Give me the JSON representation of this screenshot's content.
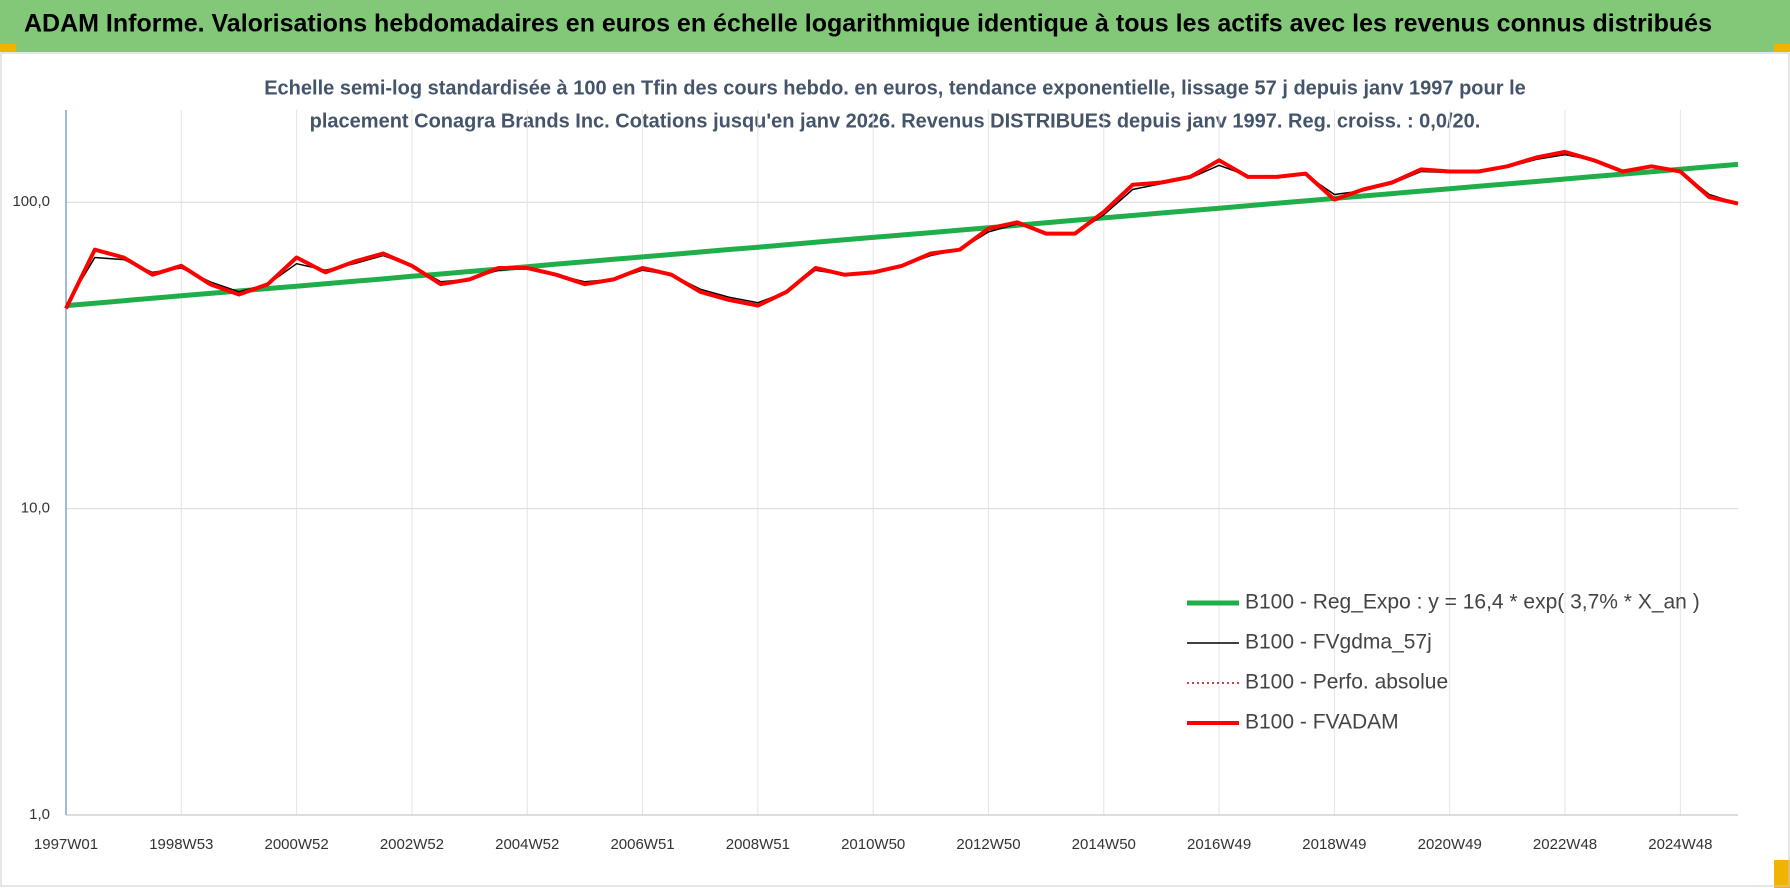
{
  "header": {
    "title": "ADAM Informe. Valorisations hebdomadaires en euros en échelle logarithmique identique à tous les actifs avec les revenus connus distribués"
  },
  "chart_data": {
    "type": "line",
    "title": [
      "Echelle semi-log standardisée à 100 en Tfin des cours hebdo. en euros, tendance exponentielle, lissage 57 j depuis janv 1997 pour le",
      "placement Conagra Brands Inc.  Cotations jusqu'en janv 2026. Revenus DISTRIBUES depuis janv 1997.  Reg. croiss. : 0,0/20."
    ],
    "categories": [
      "1997W01",
      null,
      null,
      null,
      "1998W53",
      null,
      null,
      null,
      "2000W52",
      null,
      null,
      null,
      "2002W52",
      null,
      null,
      null,
      "2004W52",
      null,
      null,
      null,
      "2006W51",
      null,
      null,
      null,
      "2008W51",
      null,
      null,
      null,
      "2010W50",
      null,
      null,
      null,
      "2012W50",
      null,
      null,
      null,
      "2014W50",
      null,
      null,
      null,
      "2016W49",
      null,
      null,
      null,
      "2018W49",
      null,
      null,
      null,
      "2020W49",
      null,
      null,
      null,
      "2022W48",
      null,
      null,
      null,
      "2024W48",
      null,
      null
    ],
    "series": [
      {
        "name": "B100 - Reg_Expo : y = 16,4 * exp( 3,7% *  X_an )",
        "color": "#1fae4a",
        "width": 5,
        "dash": null,
        "values": [
          46.0,
          46.8,
          47.7,
          48.6,
          49.5,
          50.4,
          51.3,
          52.3,
          53.2,
          54.2,
          55.2,
          56.2,
          57.3,
          58.3,
          59.4,
          60.5,
          61.6,
          62.8,
          63.9,
          65.1,
          66.3,
          67.5,
          68.8,
          70.1,
          71.3,
          72.7,
          74.0,
          75.4,
          76.8,
          78.2,
          79.6,
          81.1,
          82.6,
          84.1,
          85.7,
          87.3,
          88.9,
          90.5,
          92.2,
          93.9,
          95.6,
          97.4,
          99.2,
          101,
          102.9,
          104.8,
          106.7,
          108.7,
          110.7,
          112.7,
          114.8,
          116.9,
          119.1,
          121.3,
          123.5,
          125.8,
          128.1,
          130.5,
          132.9
        ]
      },
      {
        "name": "B100 - FVgdma_57j",
        "color": "#000000",
        "width": 1.5,
        "dash": null,
        "values": [
          46,
          66,
          65,
          59,
          61,
          55,
          51,
          54,
          63,
          60,
          63,
          67,
          62,
          55,
          56,
          60,
          61,
          58,
          55,
          56,
          60,
          58,
          52,
          49,
          47,
          51,
          60,
          58,
          59,
          62,
          67,
          70,
          80,
          85,
          79,
          79,
          91,
          110,
          115,
          120,
          132,
          122,
          121,
          123,
          106,
          109,
          115,
          126,
          125,
          126,
          130,
          138,
          143,
          137,
          127,
          130,
          126,
          106,
          99
        ]
      },
      {
        "name": "B100 - Perfo. absolue",
        "color": "#c00000",
        "width": 1.5,
        "dash": "2 3",
        "values": [
          45,
          70,
          66,
          58,
          62,
          54,
          50,
          54,
          66,
          59,
          64,
          68,
          62,
          54,
          56,
          61,
          61,
          58,
          54,
          56,
          61,
          58,
          51,
          48,
          46,
          51,
          61,
          58,
          59,
          62,
          68,
          70,
          82,
          86,
          79,
          79,
          93,
          114,
          116,
          121,
          137,
          121,
          121,
          124,
          102,
          110,
          116,
          128,
          126,
          126,
          131,
          140,
          146,
          137,
          126,
          131,
          126,
          104,
          99
        ]
      },
      {
        "name": "B100 - FVADAM",
        "color": "#ff0000",
        "width": 4,
        "dash": null,
        "values": [
          45,
          70,
          66,
          58,
          62,
          54,
          50,
          54,
          66,
          59,
          64,
          68,
          62,
          54,
          56,
          61,
          61,
          58,
          54,
          56,
          61,
          58,
          51,
          48,
          46,
          51,
          61,
          58,
          59,
          62,
          68,
          70,
          82,
          86,
          79,
          79,
          93,
          114,
          116,
          121,
          137,
          121,
          121,
          124,
          102,
          110,
          116,
          128,
          126,
          126,
          131,
          140,
          146,
          137,
          126,
          131,
          126,
          104,
          99
        ]
      }
    ],
    "log_scale": true,
    "ylim": [
      1,
      200
    ],
    "yticks": [
      {
        "value": 1,
        "label": "1,0"
      },
      {
        "value": 10,
        "label": "10,0"
      },
      {
        "value": 100,
        "label": "100,0"
      }
    ],
    "grid": true,
    "legend": "lower right"
  }
}
